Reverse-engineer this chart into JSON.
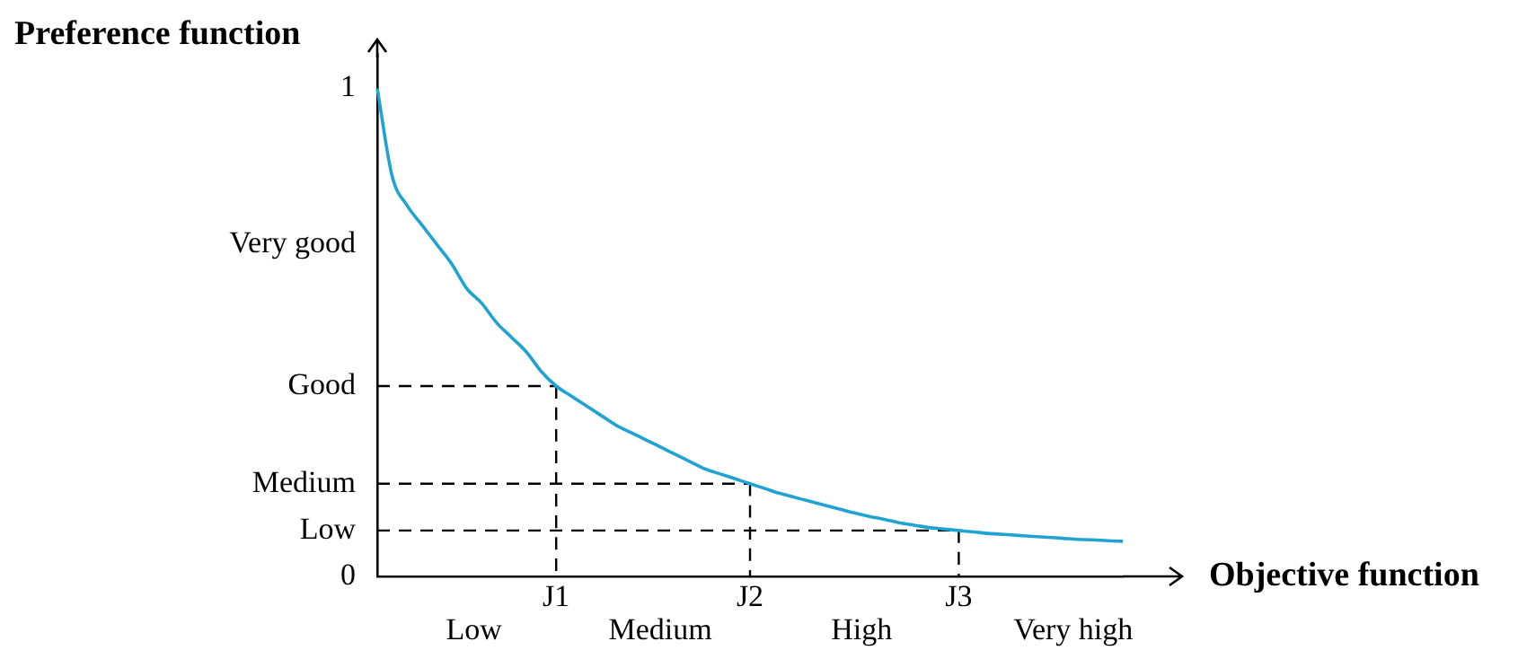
{
  "chart_data": {
    "type": "line",
    "ylabel": "Preference function",
    "xlabel": "Objective function",
    "categories": [
      null,
      null,
      null,
      null,
      null,
      null,
      null,
      null,
      null,
      null,
      null,
      null,
      "J1",
      null,
      null,
      null,
      null,
      null,
      null,
      null,
      null,
      null,
      null,
      null,
      null,
      "J2",
      null,
      null,
      null,
      null,
      null,
      null,
      null,
      null,
      null,
      null,
      null,
      null,
      null,
      "J3",
      null,
      null,
      null,
      null,
      null,
      null,
      null,
      null,
      null,
      null,
      null
    ],
    "series": [
      {
        "color": "#1fa3d3",
        "values": [
          1.0,
          0.82,
          0.76,
          0.72,
          0.68,
          0.64,
          0.59,
          0.56,
          0.52,
          0.49,
          0.46,
          0.42,
          0.39,
          0.37,
          0.35,
          0.33,
          0.31,
          0.295,
          0.28,
          0.265,
          0.25,
          0.235,
          0.22,
          0.21,
          0.2,
          0.19,
          0.18,
          0.17,
          0.162,
          0.154,
          0.146,
          0.138,
          0.13,
          0.123,
          0.117,
          0.11,
          0.105,
          0.1,
          0.097,
          0.094,
          0.091,
          0.088,
          0.086,
          0.084,
          0.082,
          0.08,
          0.078,
          0.076,
          0.075,
          0.073,
          0.072
        ]
      },
      {
        "color": "#000000",
        "line_style": "dashed",
        "values": [
          0.39,
          0.39,
          0.39,
          0.39,
          0.39,
          0.39,
          0.39,
          0.39,
          0.39,
          0.39,
          0.39,
          0.39,
          0.39,
          null,
          null,
          null,
          null,
          null,
          null,
          null,
          null,
          null,
          null,
          null,
          null,
          null,
          null,
          null,
          null,
          null,
          null,
          null,
          null,
          null,
          null,
          null,
          null,
          null,
          null,
          null,
          null,
          null,
          null,
          null,
          null,
          null,
          null,
          null,
          null,
          null,
          null
        ]
      },
      {
        "color": "#000000",
        "line_style": "dashed",
        "values": [
          0.19,
          0.19,
          0.19,
          0.19,
          0.19,
          0.19,
          0.19,
          0.19,
          0.19,
          0.19,
          0.19,
          0.19,
          0.19,
          0.19,
          0.19,
          0.19,
          0.19,
          0.19,
          0.19,
          0.19,
          0.19,
          0.19,
          0.19,
          0.19,
          0.19,
          0.19,
          null,
          null,
          null,
          null,
          null,
          null,
          null,
          null,
          null,
          null,
          null,
          null,
          null,
          null,
          null,
          null,
          null,
          null,
          null,
          null,
          null,
          null,
          null,
          null,
          null
        ]
      },
      {
        "color": "#000000",
        "line_style": "dashed",
        "values": [
          0.094,
          0.094,
          0.094,
          0.094,
          0.094,
          0.094,
          0.094,
          0.094,
          0.094,
          0.094,
          0.094,
          0.094,
          0.094,
          0.094,
          0.094,
          0.094,
          0.094,
          0.094,
          0.094,
          0.094,
          0.094,
          0.094,
          0.094,
          0.094,
          0.094,
          0.094,
          0.094,
          0.094,
          0.094,
          0.094,
          0.094,
          0.094,
          0.094,
          0.094,
          0.094,
          0.094,
          0.094,
          0.094,
          0.094,
          0.094,
          null,
          null,
          null,
          null,
          null,
          null,
          null,
          null,
          null,
          null,
          null
        ]
      },
      {
        "color": "#000000",
        "line_style": "dashed",
        "x": [
          "J1",
          "J1"
        ],
        "values": [
          0.39,
          0
        ]
      },
      {
        "color": "#000000",
        "line_style": "dashed",
        "x": [
          "J2",
          "J2"
        ],
        "values": [
          0.19,
          0
        ]
      },
      {
        "color": "#000000",
        "line_style": "dashed",
        "x": [
          "J3",
          "J3"
        ],
        "values": [
          0.094,
          0
        ]
      }
    ],
    "ylim": [
      0,
      1.07
    ],
    "yticks": [
      0,
      {
        "value": 0.094,
        "label": "Low"
      },
      {
        "value": 0.19,
        "label": "Medium"
      },
      {
        "value": 0.39,
        "label": "Good"
      },
      {
        "value": 0.68,
        "label": "Very good"
      },
      1
    ],
    "annotations": [
      "Low",
      "Medium",
      "High",
      "Very high"
    ],
    "marker": "none",
    "line_style": "solid",
    "grid": false,
    "legend": false
  }
}
